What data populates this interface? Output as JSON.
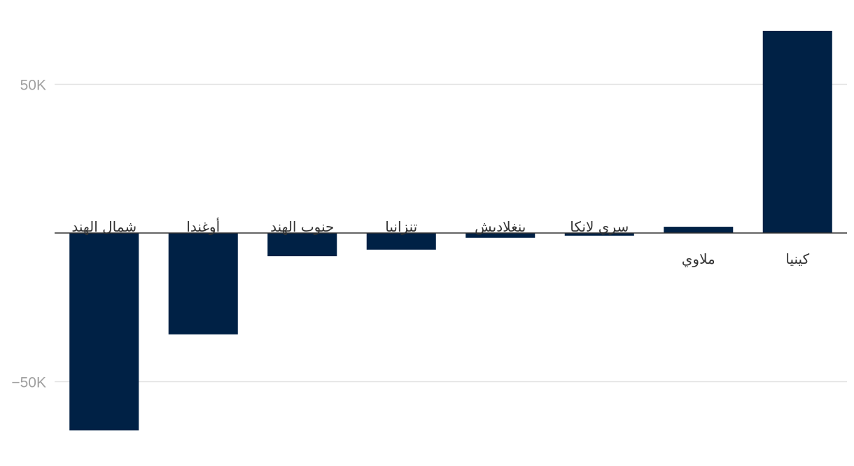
{
  "chart_data": {
    "type": "bar",
    "categories": [
      "شمال الهند",
      "أوغندا",
      "جنوب الهند",
      "تنزانيا",
      "بنغلاديش",
      "سري لانكا",
      "ملاوي",
      "كينيا"
    ],
    "values": [
      -66400,
      -34100,
      -7800,
      -5600,
      -1600,
      -900,
      2100,
      68000
    ],
    "color": "#002145",
    "ylim": [
      -75000,
      75000
    ],
    "yticks": [
      {
        "value": -50000,
        "label": "−50K"
      },
      {
        "value": 50000,
        "label": "50K"
      }
    ],
    "grid": true
  }
}
